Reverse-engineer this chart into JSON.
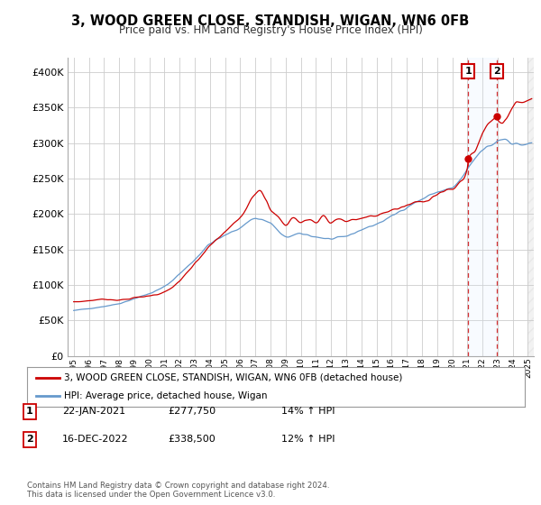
{
  "title": "3, WOOD GREEN CLOSE, STANDISH, WIGAN, WN6 0FB",
  "subtitle": "Price paid vs. HM Land Registry's House Price Index (HPI)",
  "bg_color": "#ffffff",
  "plot_bg_color": "#ffffff",
  "grid_color": "#cccccc",
  "red_color": "#cc0000",
  "blue_color": "#6699cc",
  "fill_color": "#ddeeff",
  "sale1_date": "22-JAN-2021",
  "sale1_price": "£277,750",
  "sale1_hpi": "14% ↑ HPI",
  "sale2_date": "16-DEC-2022",
  "sale2_price": "£338,500",
  "sale2_hpi": "12% ↑ HPI",
  "legend_red": "3, WOOD GREEN CLOSE, STANDISH, WIGAN, WN6 0FB (detached house)",
  "legend_blue": "HPI: Average price, detached house, Wigan",
  "footer": "Contains HM Land Registry data © Crown copyright and database right 2024.\nThis data is licensed under the Open Government Licence v3.0.",
  "ylim": [
    0,
    420000
  ],
  "yticks": [
    0,
    50000,
    100000,
    150000,
    200000,
    250000,
    300000,
    350000,
    400000
  ],
  "sale1_x": 2021.05,
  "sale1_y": 277750,
  "sale2_x": 2022.92,
  "sale2_y": 338500,
  "vline1_x": 2021.05,
  "vline2_x": 2022.92,
  "xmin": 1995.0,
  "xmax": 2025.4
}
